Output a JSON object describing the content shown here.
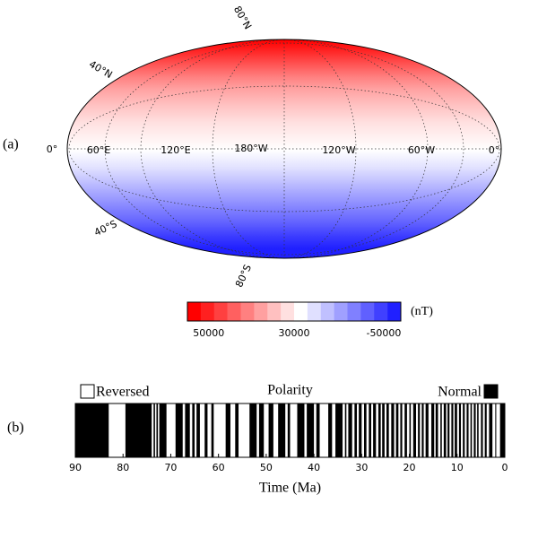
{
  "chart_data": [
    {
      "type": "map",
      "panel_label": "(a)",
      "lat_labels": [
        "80°N",
        "40°N",
        "40°S",
        "80°S"
      ],
      "lon_labels": [
        "0°",
        "60°E",
        "120°E",
        "180°W",
        "120°W",
        "60°W",
        "0°"
      ],
      "colorbar": {
        "unit": "(nT)",
        "ticks": [
          50000,
          30000,
          -50000
        ],
        "colors": [
          "#ff0000",
          "#ff2020",
          "#ff4040",
          "#ff6060",
          "#ff8080",
          "#ffa0a0",
          "#ffc0c0",
          "#ffe0e0",
          "#ffffff",
          "#e0e0ff",
          "#c0c0ff",
          "#a0a0ff",
          "#8080ff",
          "#6060ff",
          "#4040ff",
          "#2020ff"
        ]
      }
    },
    {
      "type": "polarity",
      "panel_label": "(b)",
      "title": "Polarity",
      "xlabel": "Time (Ma)",
      "xlim": [
        90,
        0
      ],
      "xticks": [
        90,
        80,
        70,
        60,
        50,
        40,
        30,
        20,
        10,
        0
      ],
      "legend": {
        "reversed": "Reversed",
        "normal": "Normal"
      },
      "color": "#000000",
      "normal_intervals": [
        [
          90,
          83
        ],
        [
          79.5,
          74
        ],
        [
          73.6,
          73.3
        ],
        [
          73.0,
          72.7
        ],
        [
          72.4,
          70.9
        ],
        [
          69,
          67.5
        ],
        [
          67,
          66
        ],
        [
          65.5,
          65
        ],
        [
          64.6,
          63.9
        ],
        [
          62.9,
          62.3
        ],
        [
          61.5,
          61
        ],
        [
          58.5,
          57.5
        ],
        [
          56.5,
          55.8
        ],
        [
          53.5,
          52
        ],
        [
          51.5,
          50.5
        ],
        [
          49.5,
          48.5
        ],
        [
          47.5,
          46
        ],
        [
          45.5,
          45
        ],
        [
          43.5,
          42
        ],
        [
          41.5,
          40
        ],
        [
          39.5,
          38.8
        ],
        [
          37,
          36.2
        ],
        [
          35.5,
          34
        ],
        [
          33.5,
          33.2
        ],
        [
          32.8,
          32
        ],
        [
          31.5,
          31
        ],
        [
          30.6,
          30
        ],
        [
          29.5,
          29
        ],
        [
          28.5,
          28
        ],
        [
          27.6,
          27
        ],
        [
          26.5,
          26
        ],
        [
          25.7,
          25.2
        ],
        [
          24.8,
          24.3
        ],
        [
          23.8,
          23.2
        ],
        [
          22.8,
          22.3
        ],
        [
          21.9,
          21.5
        ],
        [
          21,
          20.5
        ],
        [
          20,
          19.7
        ],
        [
          19.2,
          18.6
        ],
        [
          18.2,
          17.8
        ],
        [
          17.4,
          17
        ],
        [
          16.6,
          16
        ],
        [
          15.4,
          14.8
        ],
        [
          14.5,
          14
        ],
        [
          13.5,
          13.2
        ],
        [
          12.8,
          12.3
        ],
        [
          12,
          11.6
        ],
        [
          11.2,
          10.8
        ],
        [
          10.5,
          10
        ],
        [
          9.6,
          9.2
        ],
        [
          8.8,
          8.4
        ],
        [
          8,
          7.6
        ],
        [
          7.2,
          6.9
        ],
        [
          6.5,
          6.1
        ],
        [
          5.8,
          5.5
        ],
        [
          5,
          4.6
        ],
        [
          4.2,
          3.8
        ],
        [
          3.3,
          2.6
        ],
        [
          2.0,
          1.8
        ],
        [
          1.0,
          0
        ]
      ]
    }
  ]
}
